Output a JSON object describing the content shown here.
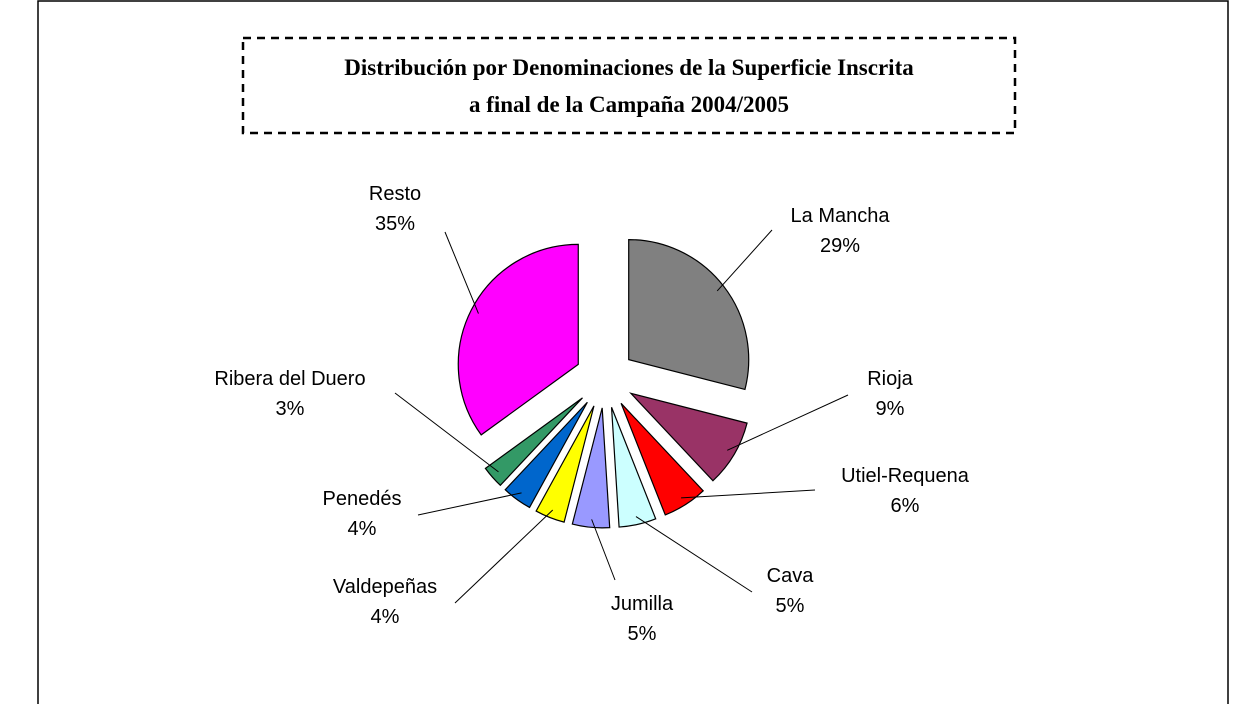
{
  "chart_data": {
    "type": "pie",
    "title": [
      "Distribución por Denominaciones de la Superficie Inscrita",
      "a final de la Campaña 2004/2005"
    ],
    "categories": [
      "La Mancha",
      "Rioja",
      "Utiel-Requena",
      "Cava",
      "Jumilla",
      "Valdepeñas",
      "Penedés",
      "Ribera del Duero",
      "Resto"
    ],
    "values": [
      29,
      9,
      6,
      5,
      5,
      4,
      4,
      3,
      35
    ],
    "value_labels": [
      "29%",
      "9%",
      "6%",
      "5%",
      "5%",
      "4%",
      "4%",
      "3%",
      "35%"
    ],
    "colors": [
      "#808080",
      "#993366",
      "#ff0000",
      "#ccffff",
      "#9999ff",
      "#ffff00",
      "#0066cc",
      "#339966",
      "#ff00ff"
    ]
  }
}
